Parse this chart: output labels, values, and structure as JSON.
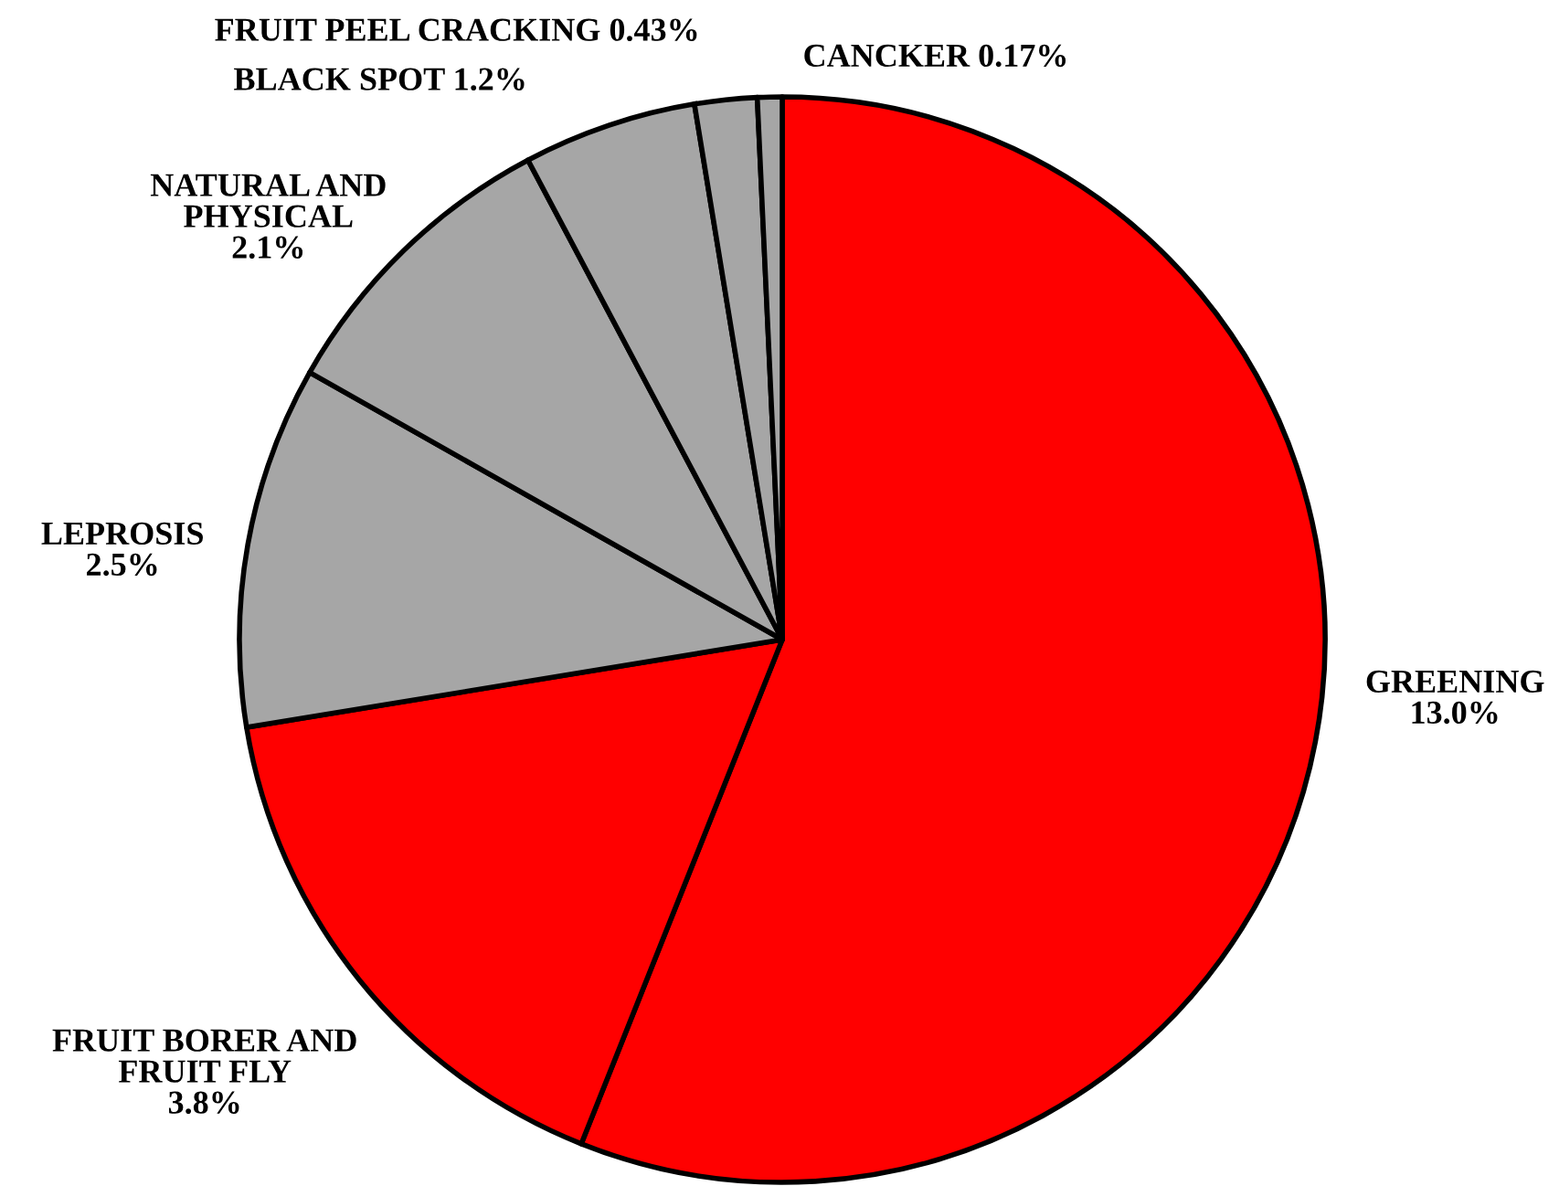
{
  "chart_data": {
    "type": "pie",
    "categories": [
      "GREENING",
      "FRUIT BORER AND\nFRUIT FLY",
      "LEPROSIS",
      "NATURAL AND\nPHYSICAL",
      "BLACK SPOT",
      "FRUIT PEEL CRACKING",
      "CANCKER"
    ],
    "values": [
      13.0,
      3.8,
      2.5,
      2.1,
      1.2,
      0.43,
      0.17
    ],
    "value_labels": [
      "13.0%",
      "3.8%",
      "2.5%",
      "2.1%",
      "1.2%",
      "0.43%",
      "0.17%"
    ],
    "colors": [
      "#ff0000",
      "#ff0000",
      "#a6a6a6",
      "#a6a6a6",
      "#a6a6a6",
      "#a6a6a6",
      "#a6a6a6"
    ]
  }
}
